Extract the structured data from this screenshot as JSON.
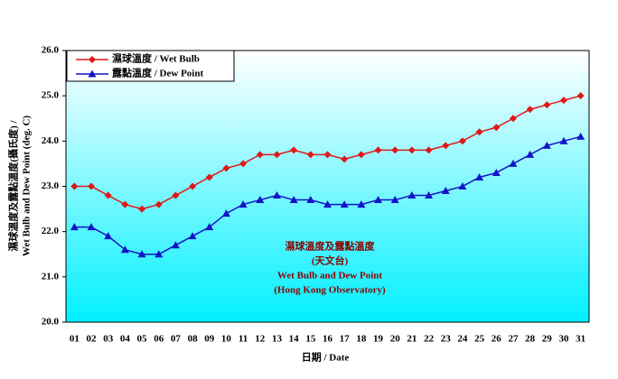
{
  "chart_data": {
    "type": "line",
    "y_label": [
      "濕球溫度及露點溫度(攝氏度) /",
      "Wet Bulb and Dew Point (deg. C)"
    ],
    "x_label": "日期 / Date",
    "annotation": [
      "濕球溫度及露點溫度",
      "(天文台)",
      "Wet Bulb and Dew Point",
      "(Hong Kong Observatory)"
    ],
    "categories": [
      "01",
      "02",
      "03",
      "04",
      "05",
      "06",
      "07",
      "08",
      "09",
      "10",
      "11",
      "12",
      "13",
      "14",
      "15",
      "16",
      "17",
      "18",
      "19",
      "20",
      "21",
      "22",
      "23",
      "24",
      "25",
      "26",
      "27",
      "28",
      "29",
      "30",
      "31"
    ],
    "series": [
      {
        "name": "濕球溫度 / Wet Bulb",
        "color": "#e01818",
        "marker": "diamond",
        "values": [
          23.0,
          23.0,
          22.8,
          22.6,
          22.5,
          22.6,
          22.8,
          23.0,
          23.2,
          23.4,
          23.5,
          23.7,
          23.7,
          23.8,
          23.7,
          23.7,
          23.6,
          23.7,
          23.8,
          23.8,
          23.8,
          23.8,
          23.9,
          24.0,
          24.2,
          24.3,
          24.5,
          24.7,
          24.8,
          24.9,
          25.0
        ]
      },
      {
        "name": "露點溫度 / Dew Point",
        "color": "#1414c8",
        "marker": "triangle",
        "values": [
          22.1,
          22.1,
          21.9,
          21.6,
          21.5,
          21.5,
          21.7,
          21.9,
          22.1,
          22.4,
          22.6,
          22.7,
          22.8,
          22.7,
          22.7,
          22.6,
          22.6,
          22.6,
          22.7,
          22.7,
          22.8,
          22.8,
          22.9,
          23.0,
          23.2,
          23.3,
          23.5,
          23.7,
          23.9,
          24.0,
          24.1
        ]
      }
    ],
    "ylim": [
      20,
      26
    ],
    "yticks": [
      {
        "value": 20,
        "label": "20.0"
      },
      {
        "value": 21,
        "label": "21.0"
      },
      {
        "value": 22,
        "label": "22.0"
      },
      {
        "value": 23,
        "label": "23.0"
      },
      {
        "value": 24,
        "label": "24.0"
      },
      {
        "value": 25,
        "label": "25.0"
      },
      {
        "value": 26,
        "label": "26.0"
      }
    ],
    "legend": "top-left"
  }
}
